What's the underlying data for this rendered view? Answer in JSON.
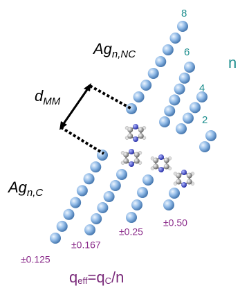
{
  "labels": {
    "ag_nc": {
      "base": "Ag",
      "sub": "n,NC"
    },
    "d_mm": {
      "base": "d",
      "sub": "MM"
    },
    "ag_c": {
      "base": "Ag",
      "sub": "n,C"
    }
  },
  "nc_chain_labels": [
    "8",
    "6",
    "4",
    "2"
  ],
  "n_label": "n",
  "charges": [
    "±0.125",
    "±0.167",
    "±0.25",
    "±0.50"
  ],
  "formula": {
    "q": "q",
    "eff": "eff",
    "eq": "=q",
    "c": "C",
    "rest": "/n"
  }
}
